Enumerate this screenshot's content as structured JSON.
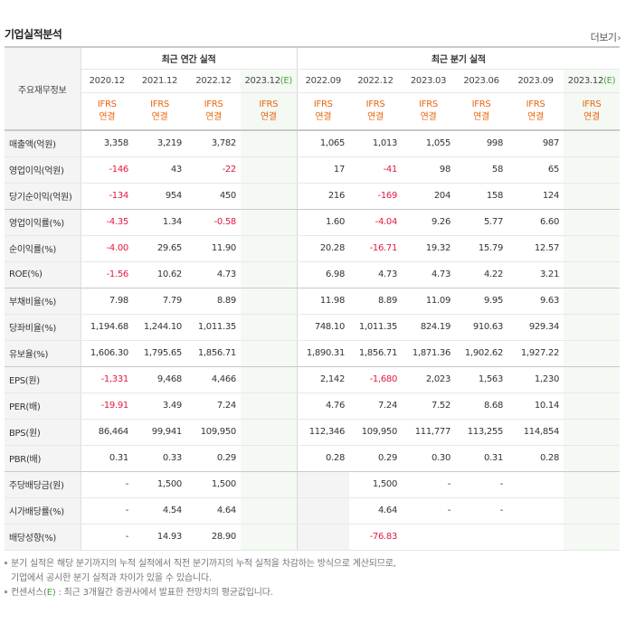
{
  "header": {
    "title": "기업실적분석",
    "more_label": "더보기"
  },
  "table": {
    "stub_label": "주요재무정보",
    "annual_label": "최근 연간 실적",
    "quarterly_label": "최근 분기 실적",
    "periods": [
      "2020.12",
      "2021.12",
      "2022.12",
      "2023.12(E)",
      "2022.09",
      "2022.12",
      "2023.03",
      "2023.06",
      "2023.09",
      "2023.12(E)"
    ],
    "estimate_marker": "(E)",
    "ifrs_line1": "IFRS",
    "ifrs_line2": "연결",
    "rows": [
      {
        "label": "매출액(억원)",
        "values": [
          "3,358",
          "3,219",
          "3,782",
          "",
          "1,065",
          "1,013",
          "1,055",
          "998",
          "987",
          ""
        ]
      },
      {
        "label": "영업이익(억원)",
        "values": [
          "-146",
          "43",
          "-22",
          "",
          "17",
          "-41",
          "98",
          "58",
          "65",
          ""
        ]
      },
      {
        "label": "당기순이익(억원)",
        "values": [
          "-134",
          "954",
          "450",
          "",
          "216",
          "-169",
          "204",
          "158",
          "124",
          ""
        ]
      },
      {
        "label": "영업이익률(%)",
        "values": [
          "-4.35",
          "1.34",
          "-0.58",
          "",
          "1.60",
          "-4.04",
          "9.26",
          "5.77",
          "6.60",
          ""
        ]
      },
      {
        "label": "순이익률(%)",
        "values": [
          "-4.00",
          "29.65",
          "11.90",
          "",
          "20.28",
          "-16.71",
          "19.32",
          "15.79",
          "12.57",
          ""
        ]
      },
      {
        "label": "ROE(%)",
        "values": [
          "-1.56",
          "10.62",
          "4.73",
          "",
          "6.98",
          "4.73",
          "4.73",
          "4.22",
          "3.21",
          ""
        ]
      },
      {
        "label": "부채비율(%)",
        "values": [
          "7.98",
          "7.79",
          "8.89",
          "",
          "11.98",
          "8.89",
          "11.09",
          "9.95",
          "9.63",
          ""
        ]
      },
      {
        "label": "당좌비율(%)",
        "values": [
          "1,194.68",
          "1,244.10",
          "1,011.35",
          "",
          "748.10",
          "1,011.35",
          "824.19",
          "910.63",
          "929.34",
          ""
        ]
      },
      {
        "label": "유보율(%)",
        "values": [
          "1,606.30",
          "1,795.65",
          "1,856.71",
          "",
          "1,890.31",
          "1,856.71",
          "1,871.36",
          "1,902.62",
          "1,927.22",
          ""
        ]
      },
      {
        "label": "EPS(원)",
        "values": [
          "-1,331",
          "9,468",
          "4,466",
          "",
          "2,142",
          "-1,680",
          "2,023",
          "1,563",
          "1,230",
          ""
        ]
      },
      {
        "label": "PER(배)",
        "values": [
          "-19.91",
          "3.49",
          "7.24",
          "",
          "4.76",
          "7.24",
          "7.52",
          "8.68",
          "10.14",
          ""
        ]
      },
      {
        "label": "BPS(원)",
        "values": [
          "86,464",
          "99,941",
          "109,950",
          "",
          "112,346",
          "109,950",
          "111,777",
          "113,255",
          "114,854",
          ""
        ]
      },
      {
        "label": "PBR(배)",
        "values": [
          "0.31",
          "0.33",
          "0.29",
          "",
          "0.28",
          "0.29",
          "0.30",
          "0.31",
          "0.28",
          ""
        ]
      },
      {
        "label": "주당배당금(원)",
        "values": [
          "-",
          "1,500",
          "1,500",
          "",
          "",
          "1,500",
          "-",
          "-",
          "",
          ""
        ]
      },
      {
        "label": "시가배당률(%)",
        "values": [
          "-",
          "4.54",
          "4.64",
          "",
          "",
          "4.64",
          "-",
          "-",
          "",
          ""
        ]
      },
      {
        "label": "배당성향(%)",
        "values": [
          "-",
          "14.93",
          "28.90",
          "",
          "",
          "-76.83",
          "",
          "",
          "",
          ""
        ]
      }
    ]
  },
  "notes": {
    "line1": "분기 실적은 해당 분기까지의 누적 실적에서 직전 분기까지의 누적 실적을 차감하는 방식으로 계산되므로,",
    "line2": "기업에서 공시한 분기 실적과 차이가 있을 수 있습니다.",
    "line3_prefix": "컨센서스(",
    "line3_e": "E",
    "line3_suffix": ") : 최근 3개월간 증권사에서 발표한 전망치의 평균값입니다."
  },
  "colors": {
    "negative": "#e4183d",
    "ifrs": "#e8660f",
    "estimate": "#48a23c"
  }
}
